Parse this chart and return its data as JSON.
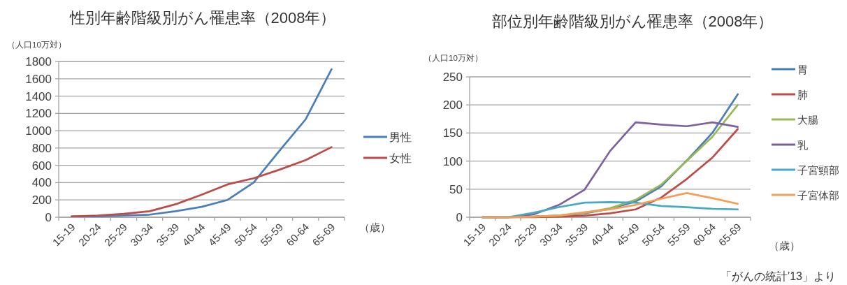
{
  "chart_data": [
    {
      "type": "line",
      "title": "性別年齢階級別がん罹患率（2008年）",
      "ylabel": "（人口10万対）",
      "xlabel": "（歳）",
      "categories": [
        "15-19",
        "20-24",
        "25-29",
        "30-34",
        "35-39",
        "40-44",
        "45-49",
        "50-54",
        "55-59",
        "60-64",
        "65-69"
      ],
      "series": [
        {
          "name": "男性",
          "color": "#4a7ebb",
          "values": [
            10,
            10,
            20,
            30,
            70,
            120,
            200,
            400,
            770,
            1130,
            1710
          ]
        },
        {
          "name": "女性",
          "color": "#be4b48",
          "values": [
            10,
            20,
            40,
            70,
            150,
            260,
            380,
            450,
            550,
            660,
            810
          ]
        }
      ],
      "ylim": [
        0,
        1800
      ],
      "yticks": [
        0,
        200,
        400,
        600,
        800,
        1000,
        1200,
        1400,
        1600,
        1800
      ],
      "grid": "y",
      "legend": "right"
    },
    {
      "type": "line",
      "title": "部位別年齢階級別がん罹患率（2008年）",
      "ylabel": "（人口10万対）",
      "xlabel": "（歳）",
      "categories": [
        "15-19",
        "20-24",
        "25-29",
        "30-34",
        "35-39",
        "40-44",
        "45-49",
        "50-54",
        "55-59",
        "60-64",
        "65-69"
      ],
      "series": [
        {
          "name": "胃",
          "color": "#4a7ebb",
          "values": [
            0,
            0,
            1,
            3,
            7,
            15,
            28,
            55,
            101,
            150,
            219
          ]
        },
        {
          "name": "肺",
          "color": "#be4b48",
          "values": [
            0,
            0,
            0,
            1,
            3,
            7,
            14,
            35,
            68,
            106,
            157
          ]
        },
        {
          "name": "大腸",
          "color": "#98b954",
          "values": [
            0,
            0,
            1,
            3,
            8,
            16,
            31,
            58,
            100,
            143,
            200
          ]
        },
        {
          "name": "乳",
          "color": "#7d60a0",
          "values": [
            0,
            0,
            5,
            22,
            49,
            118,
            169,
            165,
            162,
            169,
            161
          ]
        },
        {
          "name": "子宮頸部",
          "color": "#46aac5",
          "values": [
            0,
            0,
            8,
            18,
            26,
            27,
            26,
            20,
            18,
            15,
            14
          ]
        },
        {
          "name": "子宮体部",
          "color": "#f59d56",
          "values": [
            0,
            0,
            1,
            3,
            9,
            14,
            22,
            33,
            43,
            34,
            24
          ]
        }
      ],
      "ylim": [
        0,
        250
      ],
      "yticks": [
        0,
        50,
        100,
        150,
        200,
        250
      ],
      "grid": "y",
      "legend": "right",
      "annotations": [
        "「がんの統計’13」より"
      ]
    }
  ]
}
